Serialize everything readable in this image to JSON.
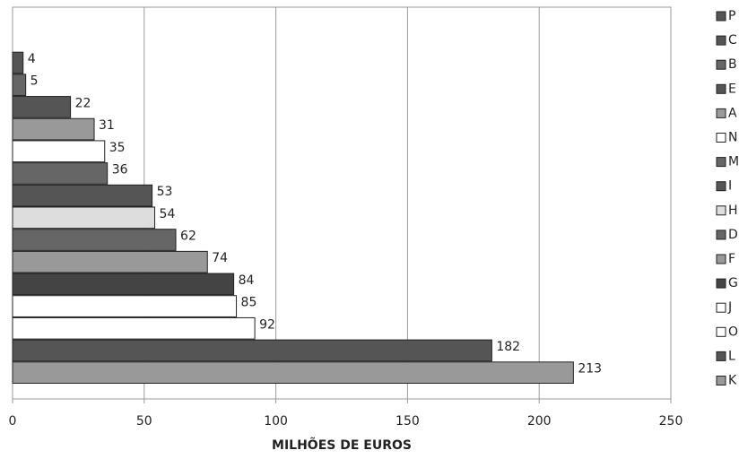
{
  "chart_data": {
    "type": "bar",
    "orientation": "horizontal",
    "xlabel": "MILHÕES DE EUROS",
    "categories": [
      "P",
      "C",
      "B",
      "E",
      "A",
      "N",
      "M",
      "I",
      "H",
      "D",
      "F",
      "G",
      "J",
      "O",
      "L",
      "K"
    ],
    "values": [
      null,
      4,
      5,
      22,
      31,
      35,
      36,
      53,
      54,
      62,
      74,
      84,
      85,
      92,
      182,
      213
    ],
    "colors": [
      "#555555",
      "#555555",
      "#666666",
      "#555555",
      "#999999",
      "#ffffff",
      "#666666",
      "#555555",
      "#dddddd",
      "#666666",
      "#999999",
      "#444444",
      "#ffffff",
      "#ffffff",
      "#555555",
      "#999999"
    ],
    "xlim": [
      0,
      250
    ],
    "xticks": [
      0,
      50,
      100,
      150,
      200,
      250
    ],
    "grid": true,
    "legend": "right"
  }
}
